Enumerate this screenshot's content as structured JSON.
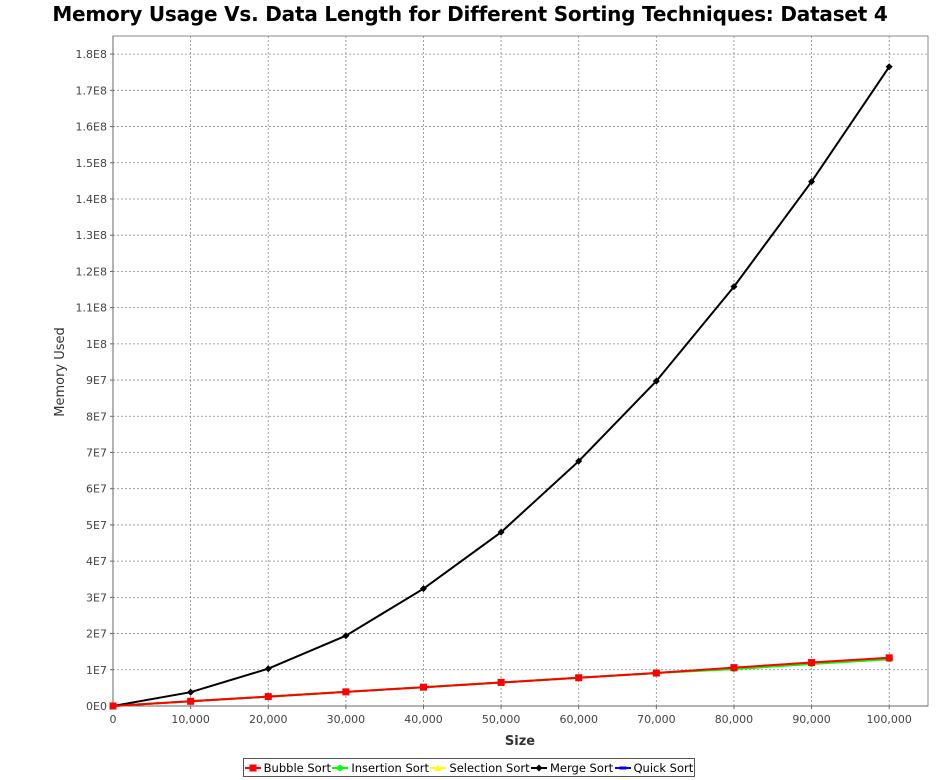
{
  "chart_data": {
    "type": "line",
    "title": "Memory Usage Vs. Data Length for Different Sorting Techniques: Dataset 4",
    "xlabel": "Size",
    "ylabel": "Memory Used",
    "xlim": [
      0,
      105000
    ],
    "ylim": [
      0,
      185000000
    ],
    "x_ticks": [
      0,
      10000,
      20000,
      30000,
      40000,
      50000,
      60000,
      70000,
      80000,
      90000,
      100000
    ],
    "x_tick_labels": [
      "0",
      "10,000",
      "20,000",
      "30,000",
      "40,000",
      "50,000",
      "60,000",
      "70,000",
      "80,000",
      "90,000",
      "100,000"
    ],
    "y_ticks": [
      0,
      10000000,
      20000000,
      30000000,
      40000000,
      50000000,
      60000000,
      70000000,
      80000000,
      90000000,
      100000000,
      110000000,
      120000000,
      130000000,
      140000000,
      150000000,
      160000000,
      170000000,
      180000000
    ],
    "y_tick_labels": [
      "0E0",
      "1E7",
      "2E7",
      "3E7",
      "4E7",
      "5E7",
      "6E7",
      "7E7",
      "8E7",
      "9E7",
      "1E8",
      "1.1E8",
      "1.2E8",
      "1.3E8",
      "1.4E8",
      "1.5E8",
      "1.6E8",
      "1.7E8",
      "1.8E8"
    ],
    "grid": true,
    "legend_position": "bottom",
    "x": [
      0,
      10000,
      20000,
      30000,
      40000,
      50000,
      60000,
      70000,
      80000,
      90000,
      100000
    ],
    "series": [
      {
        "name": "Bubble Sort",
        "color": "#ff0000",
        "marker": "square",
        "values": [
          0,
          1300000,
          2600000,
          3900000,
          5200000,
          6500000,
          7800000,
          9100000,
          10600000,
          12000000,
          13300000
        ]
      },
      {
        "name": "Insertion Sort",
        "color": "#00ff00",
        "marker": "circle",
        "values": [
          0,
          1300000,
          2600000,
          3900000,
          5200000,
          6500000,
          7800000,
          9100000,
          10200000,
          11600000,
          12900000
        ]
      },
      {
        "name": "Selection Sort",
        "color": "#ffff00",
        "marker": "triangle",
        "values": [
          0,
          1300000,
          2600000,
          3900000,
          5200000,
          6500000,
          7800000,
          9100000,
          10400000,
          11800000,
          13100000
        ]
      },
      {
        "name": "Merge Sort",
        "color": "#000000",
        "marker": "diamond",
        "values": [
          0,
          3800000,
          10300000,
          19400000,
          32400000,
          48000000,
          67600000,
          89700000,
          115800000,
          144800000,
          176500000
        ]
      },
      {
        "name": "Quick Sort",
        "color": "#0000ff",
        "marker": "rect",
        "values": [
          0,
          1300000,
          2600000,
          3900000,
          5200000,
          6500000,
          7800000,
          9100000,
          10500000,
          11900000,
          13200000
        ]
      }
    ],
    "draw_order": [
      4,
      2,
      1,
      3,
      0
    ]
  }
}
